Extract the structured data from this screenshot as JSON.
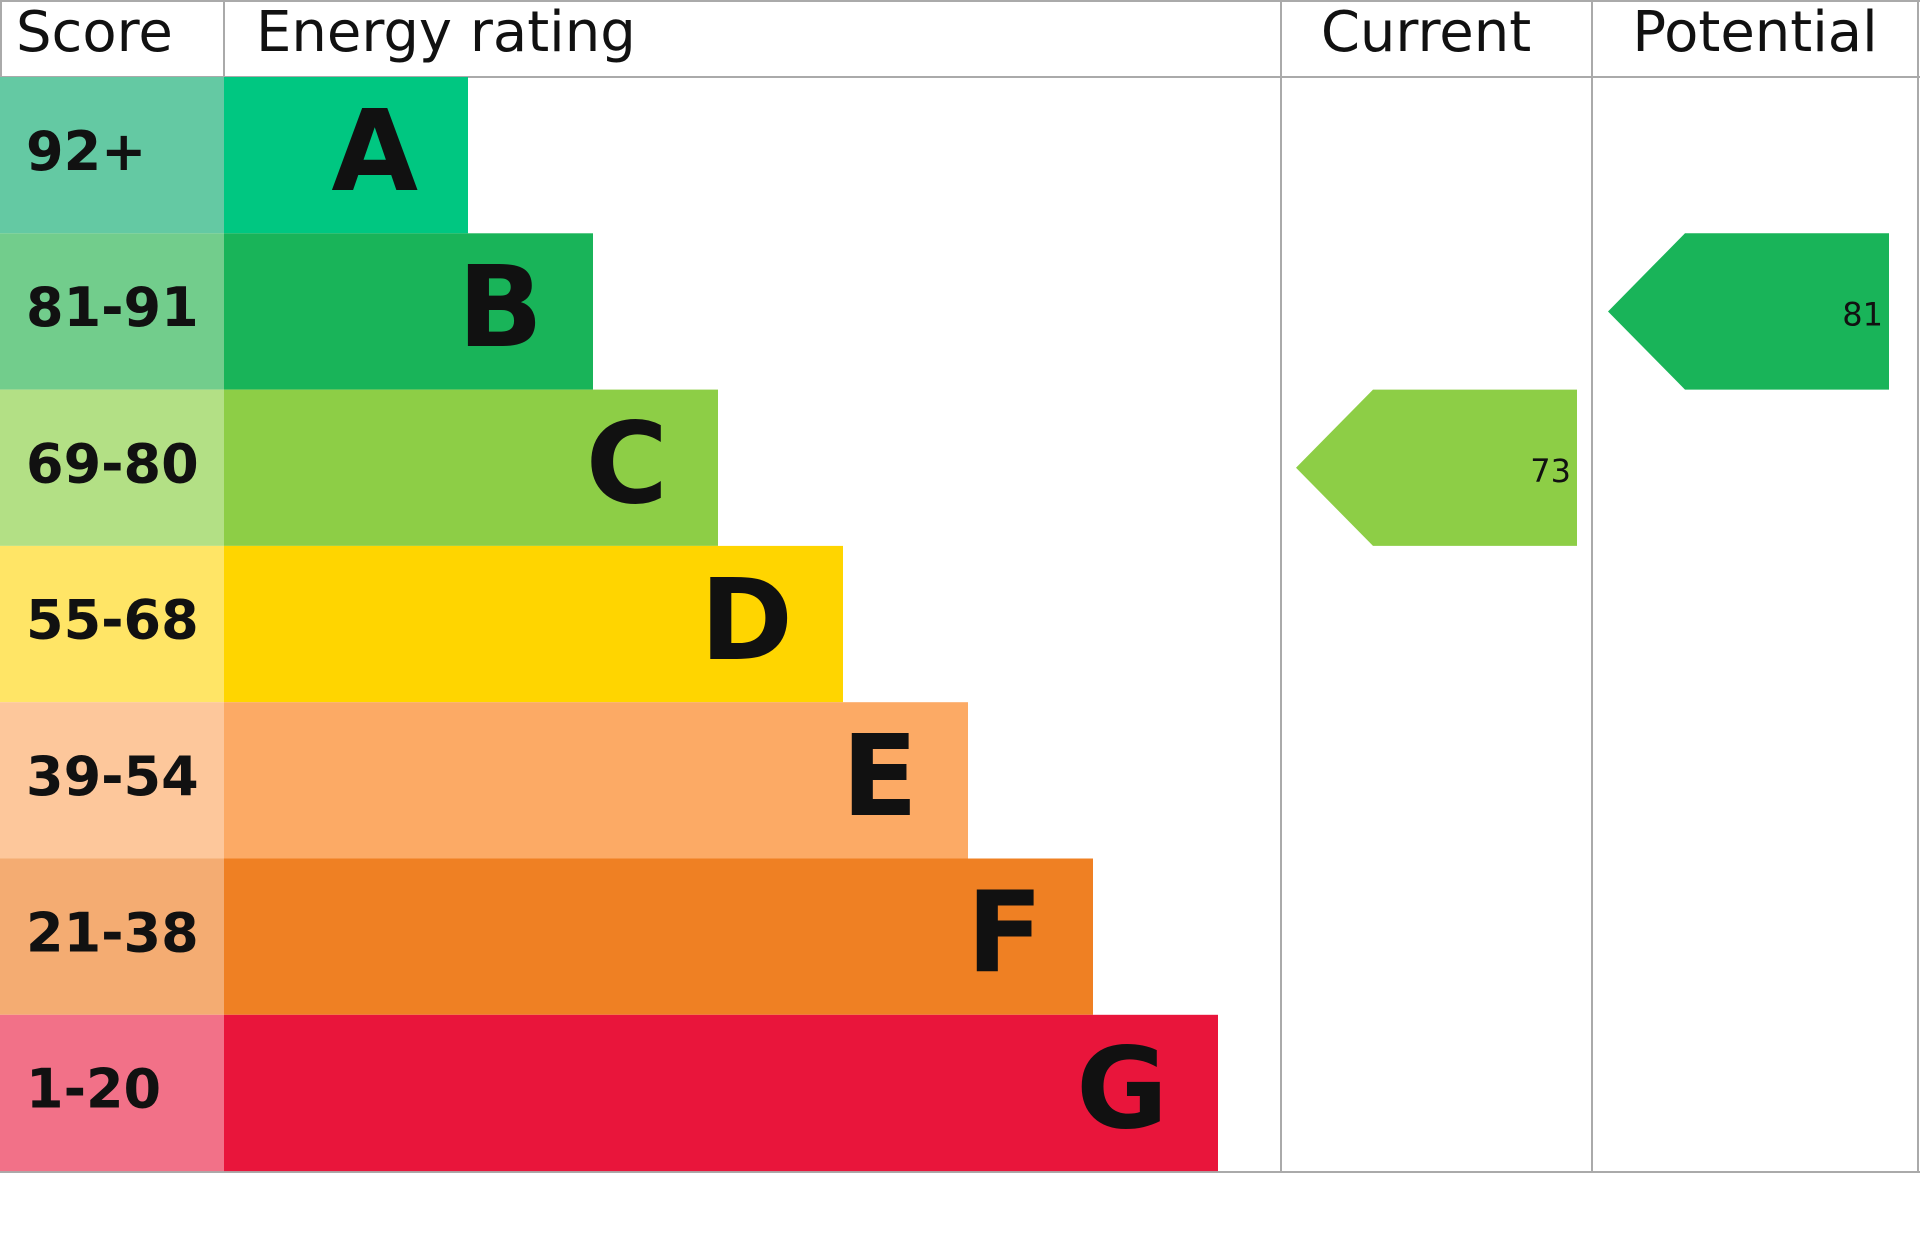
{
  "header": {
    "score": "Score",
    "energy_rating": "Energy rating",
    "current": "Current",
    "potential": "Potential"
  },
  "bands": [
    {
      "score": "92+",
      "rating": "A",
      "color": "#00c781",
      "score_color": "#64c9a3"
    },
    {
      "score": "81-91",
      "rating": "B",
      "color": "#19b459",
      "score_color": "#72cd8c"
    },
    {
      "score": "69-80",
      "rating": "C",
      "color": "#8dce46",
      "score_color": "#b3e085"
    },
    {
      "score": "55-68",
      "rating": "D",
      "color": "#ffd500",
      "score_color": "#ffe566"
    },
    {
      "score": "39-54",
      "rating": "E",
      "color": "#fcaa65",
      "score_color": "#fdc79b"
    },
    {
      "score": "21-38",
      "rating": "F",
      "color": "#ef8023",
      "score_color": "#f4ac72"
    },
    {
      "score": "1-20",
      "rating": "G",
      "color": "#e9153b",
      "score_color": "#f27188"
    }
  ],
  "current": {
    "value": 73
  },
  "potential": {
    "value": 81
  }
}
